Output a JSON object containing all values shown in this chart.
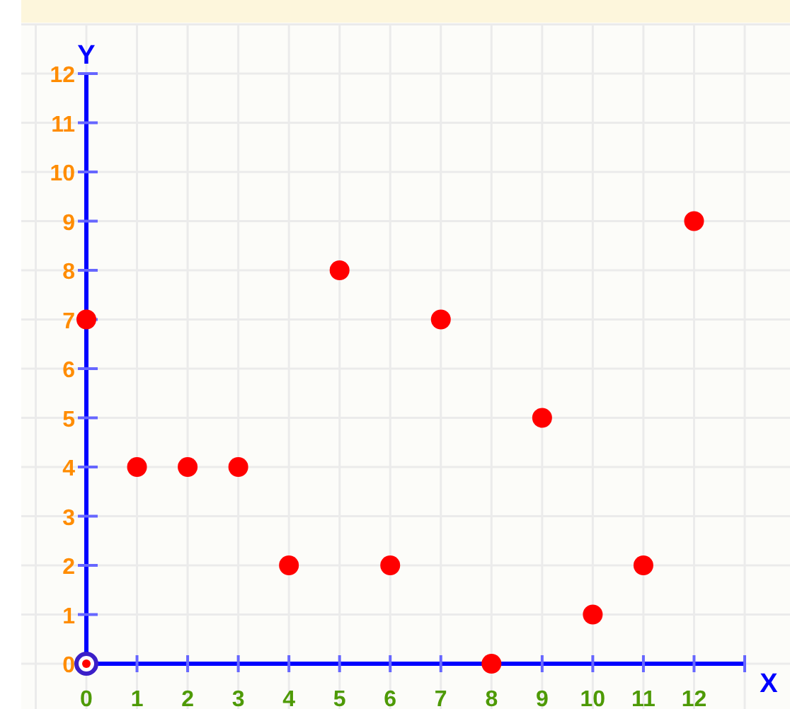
{
  "chart_data": {
    "type": "scatter",
    "xlabel": "X",
    "ylabel": "Y",
    "x": [
      0,
      1,
      2,
      3,
      4,
      5,
      6,
      7,
      8,
      9,
      10,
      11,
      12
    ],
    "series": [
      {
        "color": "#ff0000",
        "values": [
          7,
          4,
          4,
          4,
          2,
          8,
          2,
          7,
          0,
          5,
          1,
          2,
          9
        ]
      }
    ],
    "xlim": [
      0,
      13
    ],
    "ylim": [
      0,
      12
    ],
    "xticks": [
      0,
      1,
      2,
      3,
      4,
      5,
      6,
      7,
      8,
      9,
      10,
      11,
      12,
      {
        "value": 13,
        "label": null
      }
    ],
    "yticks": [
      0,
      1,
      2,
      3,
      4,
      5,
      6,
      7,
      8,
      9,
      10,
      11,
      12
    ],
    "grid": true,
    "marker": "circle"
  }
}
